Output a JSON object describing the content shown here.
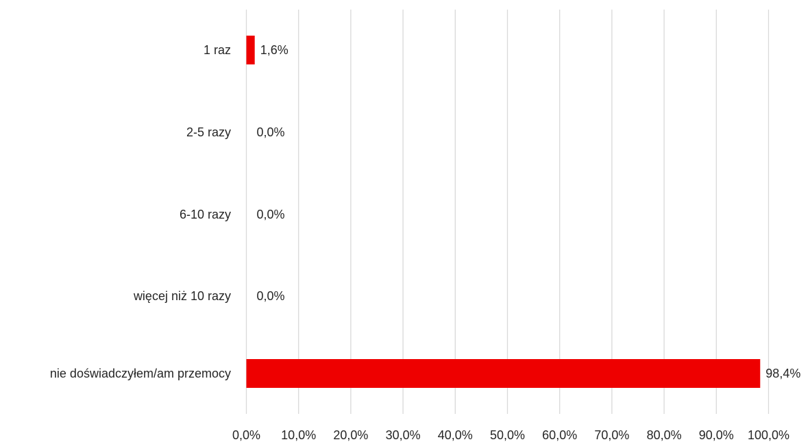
{
  "chart_data": {
    "type": "bar",
    "orientation": "horizontal",
    "categories": [
      "1 raz",
      "2-5 razy",
      "6-10 razy",
      "więcej niż 10 razy",
      "nie doświadczyłem/am przemocy"
    ],
    "values": [
      1.6,
      0.0,
      0.0,
      0.0,
      98.4
    ],
    "data_labels": [
      "1,6%",
      "0,0%",
      "0,0%",
      "0,0%",
      "98,4%"
    ],
    "xlim": [
      0,
      100
    ],
    "x_ticks": [
      0,
      10,
      20,
      30,
      40,
      50,
      60,
      70,
      80,
      90,
      100
    ],
    "x_tick_labels": [
      "0,0%",
      "10,0%",
      "20,0%",
      "30,0%",
      "40,0%",
      "50,0%",
      "60,0%",
      "70,0%",
      "80,0%",
      "90,0%",
      "100,0%"
    ],
    "grid": "vertical",
    "legend": "none",
    "bar_color": "#ee0000",
    "gridline_color": "#d9d9d9",
    "text_color": "#262626"
  }
}
